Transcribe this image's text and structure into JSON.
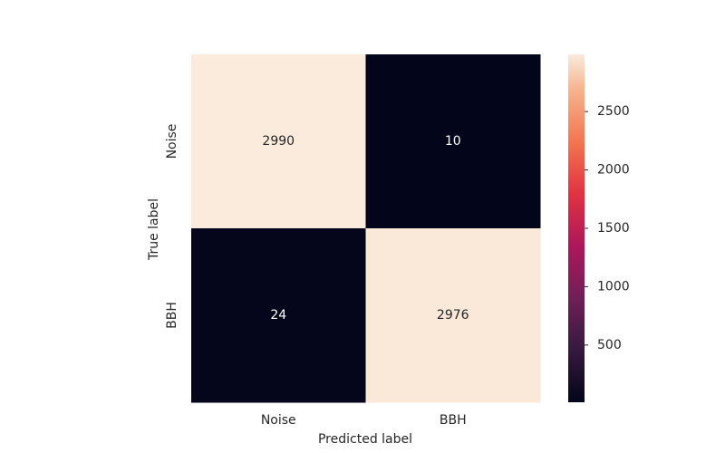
{
  "chart_data": {
    "type": "heatmap",
    "x_label": "Predicted label",
    "y_label": "True label",
    "x_categories": [
      "Noise",
      "BBH"
    ],
    "y_categories": [
      "Noise",
      "BBH"
    ],
    "values": [
      [
        2990,
        10
      ],
      [
        24,
        2976
      ]
    ],
    "colormap": "rocket",
    "colorbar_lim": [
      10,
      2990
    ],
    "colorbar_ticks": [
      500,
      1000,
      1500,
      2000,
      2500
    ]
  }
}
